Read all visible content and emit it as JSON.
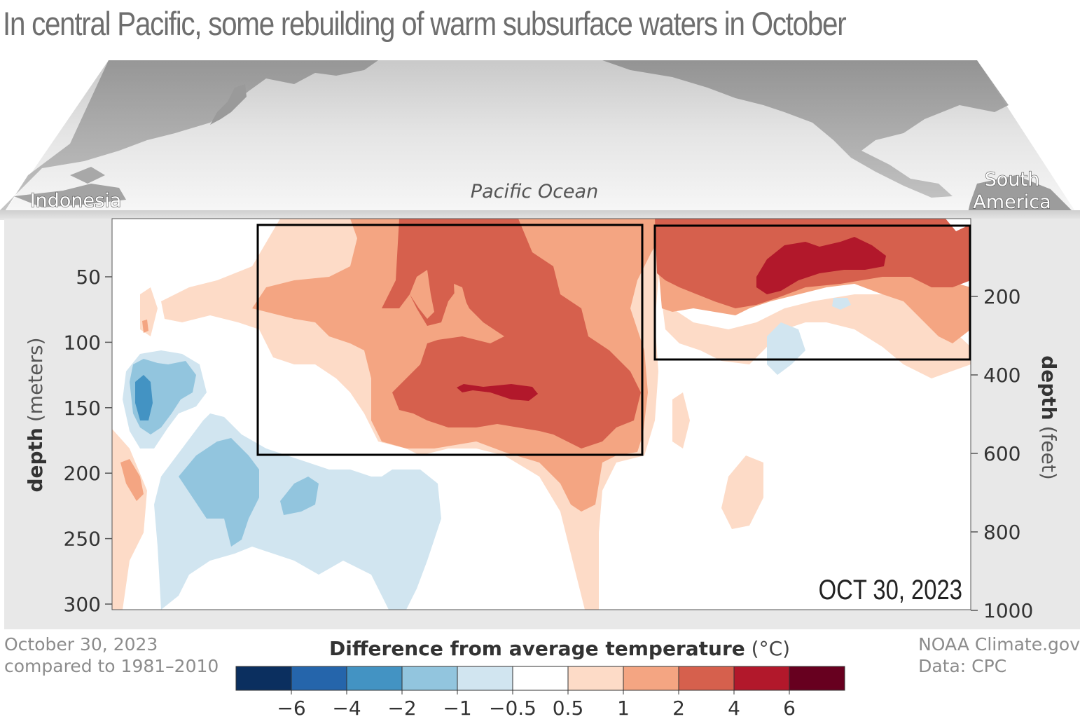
{
  "title": "In central Pacific, some rebuilding of warm subsurface waters in October",
  "map_labels": {
    "left": "Indonesia",
    "center": "Pacific Ocean",
    "right_line1": "South",
    "right_line2": "America"
  },
  "footer_left": {
    "line1": "October 30, 2023",
    "line2": "compared to 1981–2010"
  },
  "footer_right": {
    "line1": "NOAA Climate.gov",
    "line2": "Data: CPC"
  },
  "legend": {
    "title_bold": "Difference from average temperature",
    "title_unit": "(°C)",
    "colors": [
      "#0b2f5f",
      "#2565ab",
      "#4393c3",
      "#92c5de",
      "#d1e5f0",
      "#ffffff",
      "#fddbc7",
      "#f4a582",
      "#d6604d",
      "#b2182b",
      "#67001f"
    ],
    "tick_labels": [
      "−6",
      "−4",
      "−2",
      "−1",
      "−0.5",
      "0.5",
      "1",
      "2",
      "4",
      "6"
    ]
  },
  "chart_data": {
    "type": "heatmap",
    "title": "In central Pacific, some rebuilding of warm subsurface waters in October",
    "date_label": "OCT 30, 2023",
    "x_extent": {
      "left": "Indonesia",
      "right": "South America"
    },
    "y_left": {
      "label_bold": "depth",
      "label_unit": "(meters)",
      "range": [
        0,
        300
      ],
      "ticks": [
        50,
        100,
        150,
        200,
        250,
        300
      ]
    },
    "y_right": {
      "label_bold": "depth",
      "label_unit": "(feet)",
      "ticks": [
        200,
        400,
        600,
        800,
        1000
      ]
    },
    "color_scale_bounds": [
      -6,
      -4,
      -2,
      -1,
      -0.5,
      0.5,
      1,
      2,
      4,
      6
    ]
  }
}
